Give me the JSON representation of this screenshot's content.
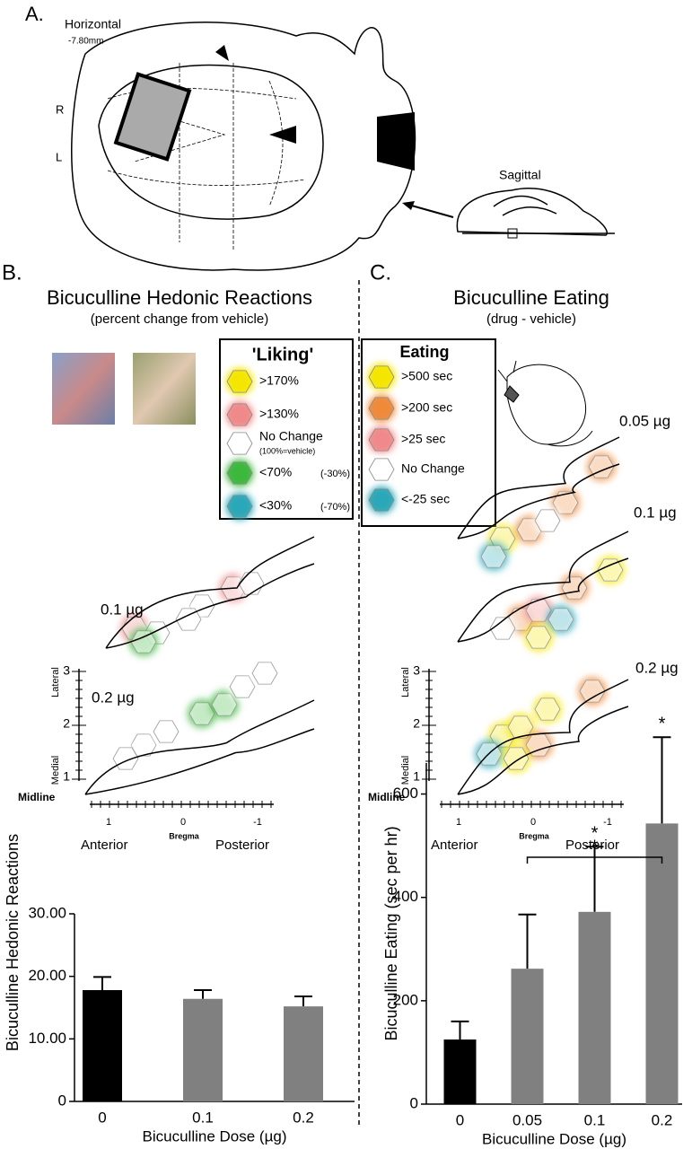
{
  "panel_a": {
    "label": "A.",
    "horizontal": "Horizontal",
    "depth": "-7.80mm",
    "right": "R",
    "left": "L",
    "sagittal": "Sagittal"
  },
  "panel_b": {
    "label": "B.",
    "title": "Bicuculline Hedonic Reactions",
    "subtitle": "(percent change from vehicle)",
    "legend": {
      "title": "'Liking'",
      "items": [
        {
          "label": ">170%",
          "color": "#f5e600"
        },
        {
          "label": ">130%",
          "color": "#f08a8a"
        },
        {
          "label": "No Change",
          "note": "(100%=vehicle)",
          "color": "#ffffff"
        },
        {
          "label": "<70%",
          "note": "(-30%)",
          "color": "#3cb83c"
        },
        {
          "label": "<30%",
          "note": "(-70%)",
          "color": "#2aa7b8"
        }
      ]
    },
    "map": {
      "doses": [
        "0.1 µg",
        "0.2 µg"
      ],
      "lateral": "Lateral",
      "medial": "Medial",
      "midline": "Midline",
      "ml_ticks": [
        "1",
        "2",
        "3"
      ],
      "ap_ticks": [
        "1",
        "0",
        "-1"
      ],
      "anterior": "Anterior",
      "bregma": "Bregma",
      "posterior": "Posterior"
    }
  },
  "panel_c": {
    "label": "C.",
    "title": "Bicuculline Eating",
    "subtitle": "(drug - vehicle)",
    "legend": {
      "title": "Eating",
      "items": [
        {
          "label": ">500 sec",
          "color": "#f5e600"
        },
        {
          "label": ">200 sec",
          "color": "#ee8a3a"
        },
        {
          "label": ">25 sec",
          "color": "#f08a8a"
        },
        {
          "label": "No Change",
          "color": "#ffffff"
        },
        {
          "label": "<-25 sec",
          "color": "#2aa7b8"
        }
      ]
    },
    "map": {
      "doses": [
        "0.05 µg",
        "0.1 µg",
        "0.2 µg"
      ],
      "lateral": "Lateral",
      "medial": "Medial",
      "midline": "Midline",
      "ml_ticks": [
        "1",
        "2",
        "3"
      ],
      "ap_ticks": [
        "1",
        "0",
        "-1"
      ],
      "anterior": "Anterior",
      "bregma": "Bregma",
      "posterior": "Posterior"
    }
  },
  "chart_data": [
    {
      "type": "bar",
      "xlabel": "Bicuculline Dose (µg)",
      "ylabel": "Bicuculline Hedonic Reactions",
      "categories": [
        "0",
        "0.1",
        "0.2"
      ],
      "values": [
        17.8,
        16.4,
        15.2
      ],
      "errors": [
        2.1,
        1.4,
        1.6
      ],
      "colors": [
        "#000000",
        "#808080",
        "#808080"
      ],
      "ylim": [
        0,
        30
      ],
      "yticks": [
        0,
        {
          "value": 10,
          "label": "10.00"
        },
        {
          "value": 20,
          "label": "20.00"
        },
        {
          "value": 30,
          "label": "30.00"
        }
      ]
    },
    {
      "type": "bar",
      "xlabel": "Bicuculline Dose (µg)",
      "ylabel": "Bicuculline Eating (sec per hr)",
      "categories": [
        "0",
        "0.05",
        "0.1",
        "0.2"
      ],
      "values": [
        125,
        262,
        372,
        543
      ],
      "errors": [
        35,
        105,
        126,
        167
      ],
      "colors": [
        "#000000",
        "#808080",
        "#808080",
        "#808080"
      ],
      "ylim": [
        0,
        660
      ],
      "yticks": [
        0,
        200,
        400,
        600
      ],
      "annotations": [
        "*",
        "*",
        "*"
      ]
    }
  ]
}
